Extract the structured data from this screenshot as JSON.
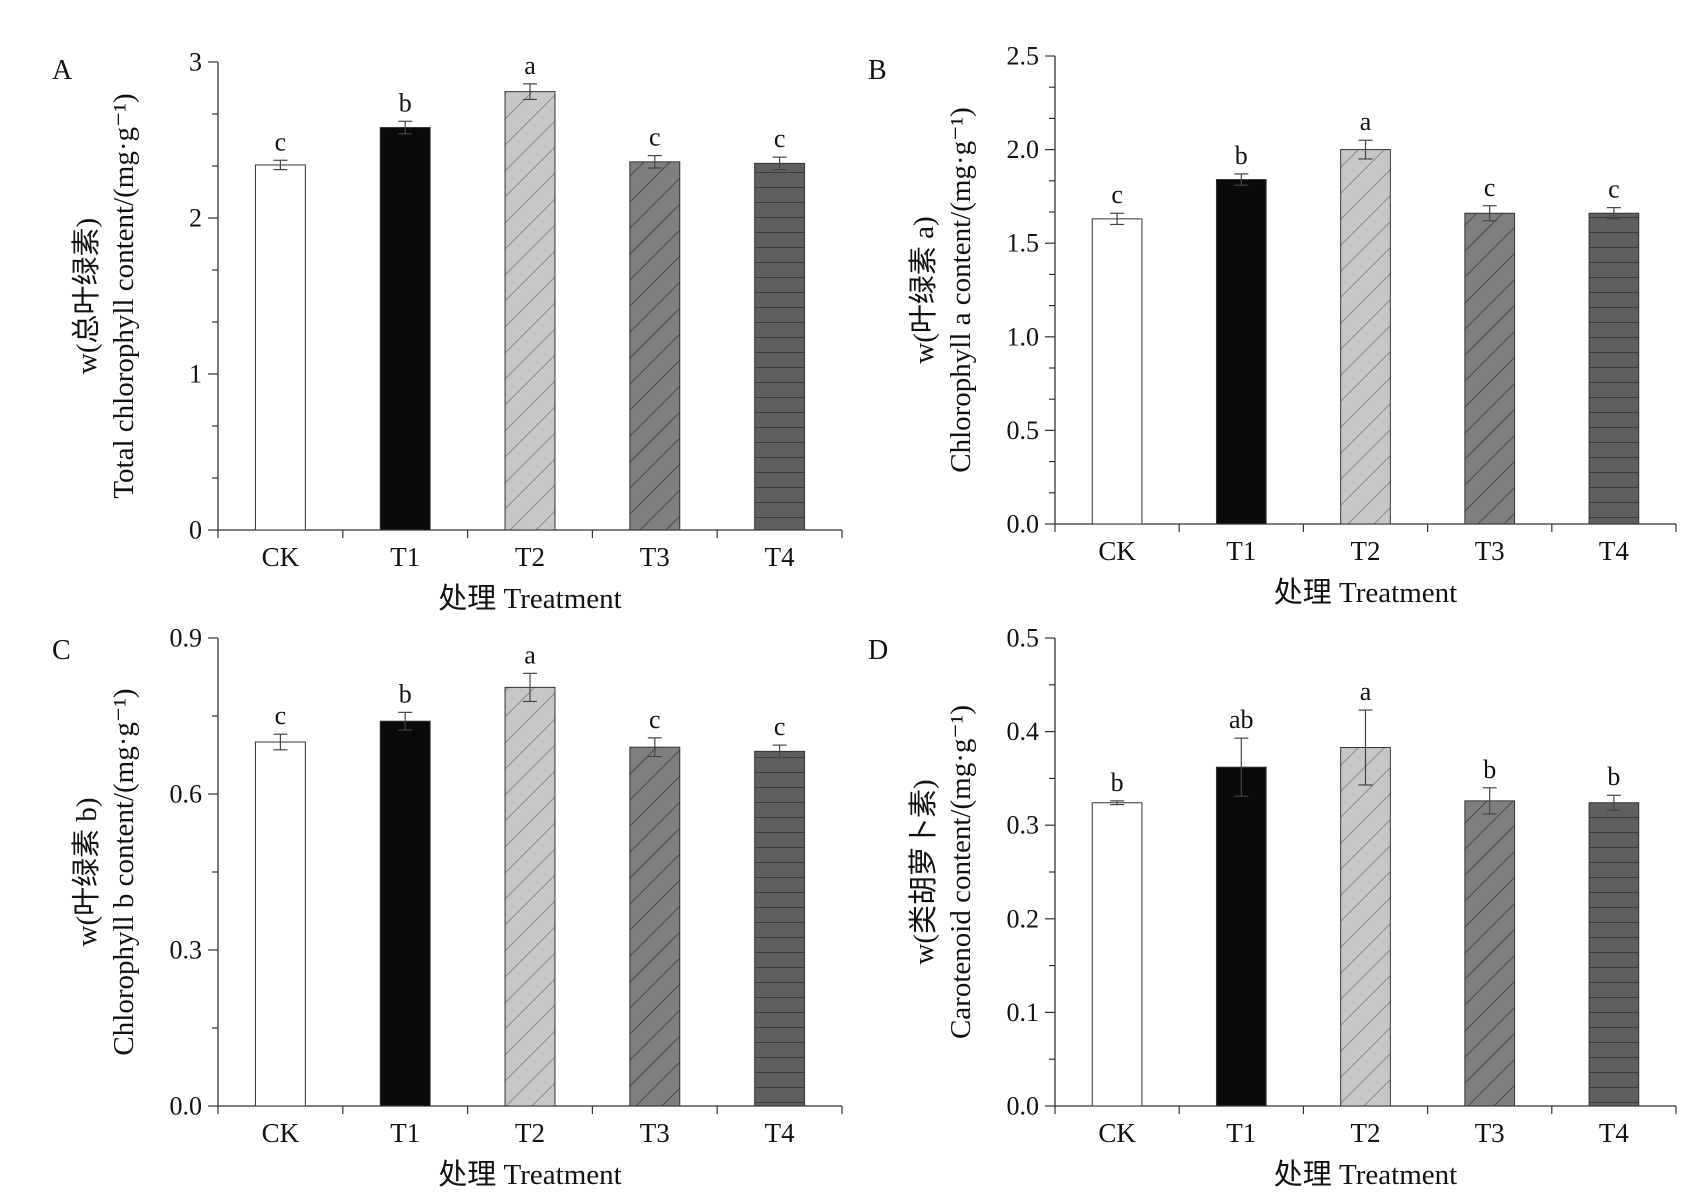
{
  "colors": {
    "CK": "#ffffff",
    "T1": "#0b0a0a",
    "T2": "#c7c7c7",
    "T3": "#7f7f7f",
    "T4": "#5f5f5f",
    "stroke": "#333333"
  },
  "chart_data": [
    {
      "id": "A",
      "type": "bar",
      "panel_label": "A",
      "title": "",
      "categories": [
        "CK",
        "T1",
        "T2",
        "T3",
        "T4"
      ],
      "series": [
        {
          "values": [
            2.34,
            2.58,
            2.81,
            2.36,
            2.35
          ],
          "errors": [
            0.03,
            0.04,
            0.05,
            0.04,
            0.04
          ],
          "letters": [
            "c",
            "b",
            "a",
            "c",
            "c"
          ]
        }
      ],
      "xlabel": "处理 Treatment",
      "ylabel_lines": [
        "Total chlorophyll content/(mg·g⁻¹)",
        "w(总叶绿素)"
      ],
      "ylim": [
        0,
        3
      ],
      "yticks": [
        "0",
        "1",
        "2",
        "3"
      ],
      "minor_ticks": true,
      "grid": false,
      "legend": "none"
    },
    {
      "id": "B",
      "type": "bar",
      "panel_label": "B",
      "title": "",
      "categories": [
        "CK",
        "T1",
        "T2",
        "T3",
        "T4"
      ],
      "series": [
        {
          "values": [
            1.63,
            1.84,
            2.0,
            1.66,
            1.66
          ],
          "errors": [
            0.03,
            0.03,
            0.05,
            0.04,
            0.03
          ],
          "letters": [
            "c",
            "b",
            "a",
            "c",
            "c"
          ]
        }
      ],
      "xlabel": "处理 Treatment",
      "ylabel_lines": [
        "Chlorophyll a content/(mg·g⁻¹)",
        "w(叶绿素 a)"
      ],
      "ylim": [
        0,
        2.5
      ],
      "yticks": [
        "0.0",
        "0.5",
        "1.0",
        "1.5",
        "2.0",
        "2.5"
      ],
      "minor_ticks": true,
      "grid": false,
      "legend": "none"
    },
    {
      "id": "C",
      "type": "bar",
      "panel_label": "C",
      "title": "",
      "categories": [
        "CK",
        "T1",
        "T2",
        "T3",
        "T4"
      ],
      "series": [
        {
          "values": [
            0.7,
            0.74,
            0.805,
            0.69,
            0.682
          ],
          "errors": [
            0.015,
            0.017,
            0.027,
            0.018,
            0.012
          ],
          "letters": [
            "c",
            "b",
            "a",
            "c",
            "c"
          ]
        }
      ],
      "xlabel": "处理 Treatment",
      "ylabel_lines": [
        "Chlorophyll b content/(mg·g⁻¹)",
        "w(叶绿素 b)"
      ],
      "ylim": [
        0,
        0.9
      ],
      "yticks": [
        "0.0",
        "0.3",
        "0.6",
        "0.9"
      ],
      "minor_ticks": true,
      "grid": false,
      "legend": "none"
    },
    {
      "id": "D",
      "type": "bar",
      "panel_label": "D",
      "title": "",
      "categories": [
        "CK",
        "T1",
        "T2",
        "T3",
        "T4"
      ],
      "series": [
        {
          "values": [
            0.324,
            0.362,
            0.383,
            0.326,
            0.324
          ],
          "errors": [
            0.002,
            0.031,
            0.04,
            0.014,
            0.008
          ],
          "letters": [
            "b",
            "ab",
            "a",
            "b",
            "b"
          ]
        }
      ],
      "xlabel": "处理 Treatment",
      "ylabel_lines": [
        "Carotenoid content/(mg·g⁻¹)",
        "w(类胡萝卜素)"
      ],
      "ylim": [
        0,
        0.5
      ],
      "yticks": [
        "0.0",
        "0.1",
        "0.2",
        "0.3",
        "0.4",
        "0.5"
      ],
      "minor_ticks": true,
      "grid": false,
      "legend": "none"
    }
  ]
}
